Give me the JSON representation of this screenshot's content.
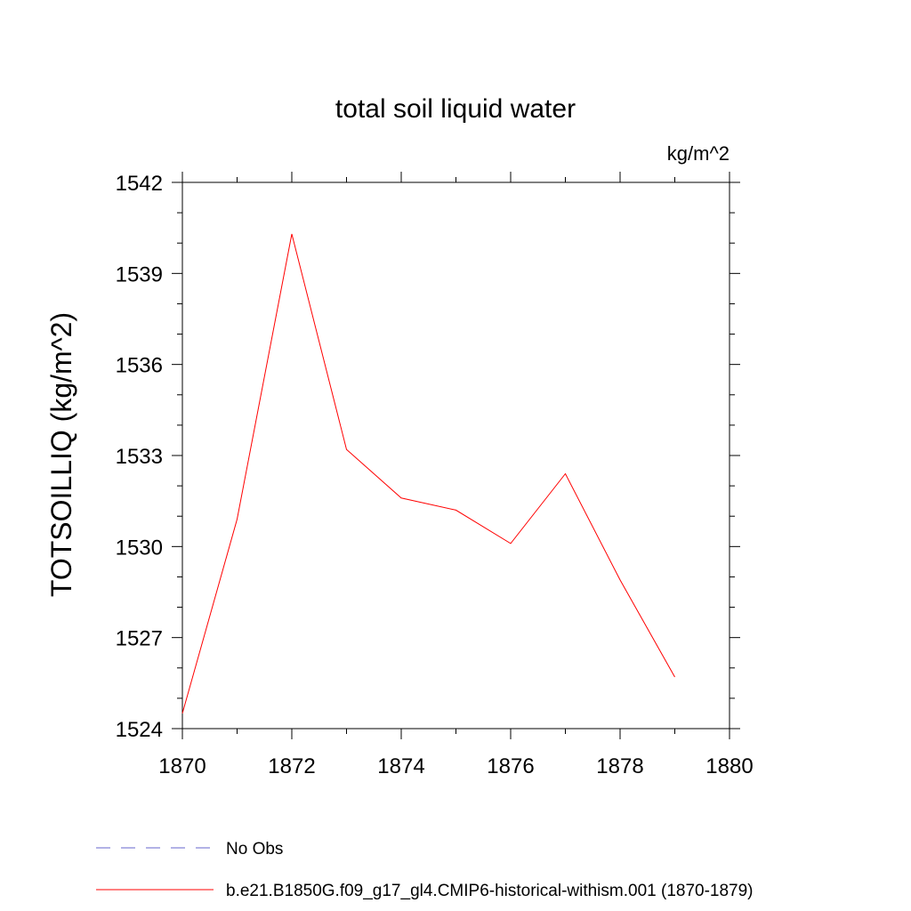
{
  "chart_data": {
    "type": "line",
    "title": "total soil liquid water",
    "units_label": "kg/m^2",
    "xlabel": "",
    "ylabel": "TOTSOILLIQ  (kg/m^2)",
    "xlim": [
      1870,
      1880
    ],
    "ylim": [
      1524,
      1542
    ],
    "x_ticks": [
      1870,
      1872,
      1874,
      1876,
      1878,
      1880
    ],
    "y_ticks": [
      1524,
      1527,
      1530,
      1533,
      1536,
      1539,
      1542
    ],
    "x_minor_step": 1,
    "y_minor_step": 1,
    "grid": false,
    "legend_position": "bottom",
    "series": [
      {
        "name": "No Obs",
        "color": "#6666cc",
        "style": "dashed",
        "x": [],
        "values": []
      },
      {
        "name": "b.e21.B1850G.f09_g17_gl4.CMIP6-historical-withism.001 (1870-1879)",
        "color": "#ff0000",
        "style": "solid",
        "x": [
          1870,
          1871,
          1872,
          1873,
          1874,
          1875,
          1876,
          1877,
          1878,
          1879
        ],
        "values": [
          1524.5,
          1530.9,
          1540.3,
          1533.2,
          1531.6,
          1531.2,
          1530.1,
          1532.4,
          1528.9,
          1525.7
        ]
      }
    ]
  }
}
